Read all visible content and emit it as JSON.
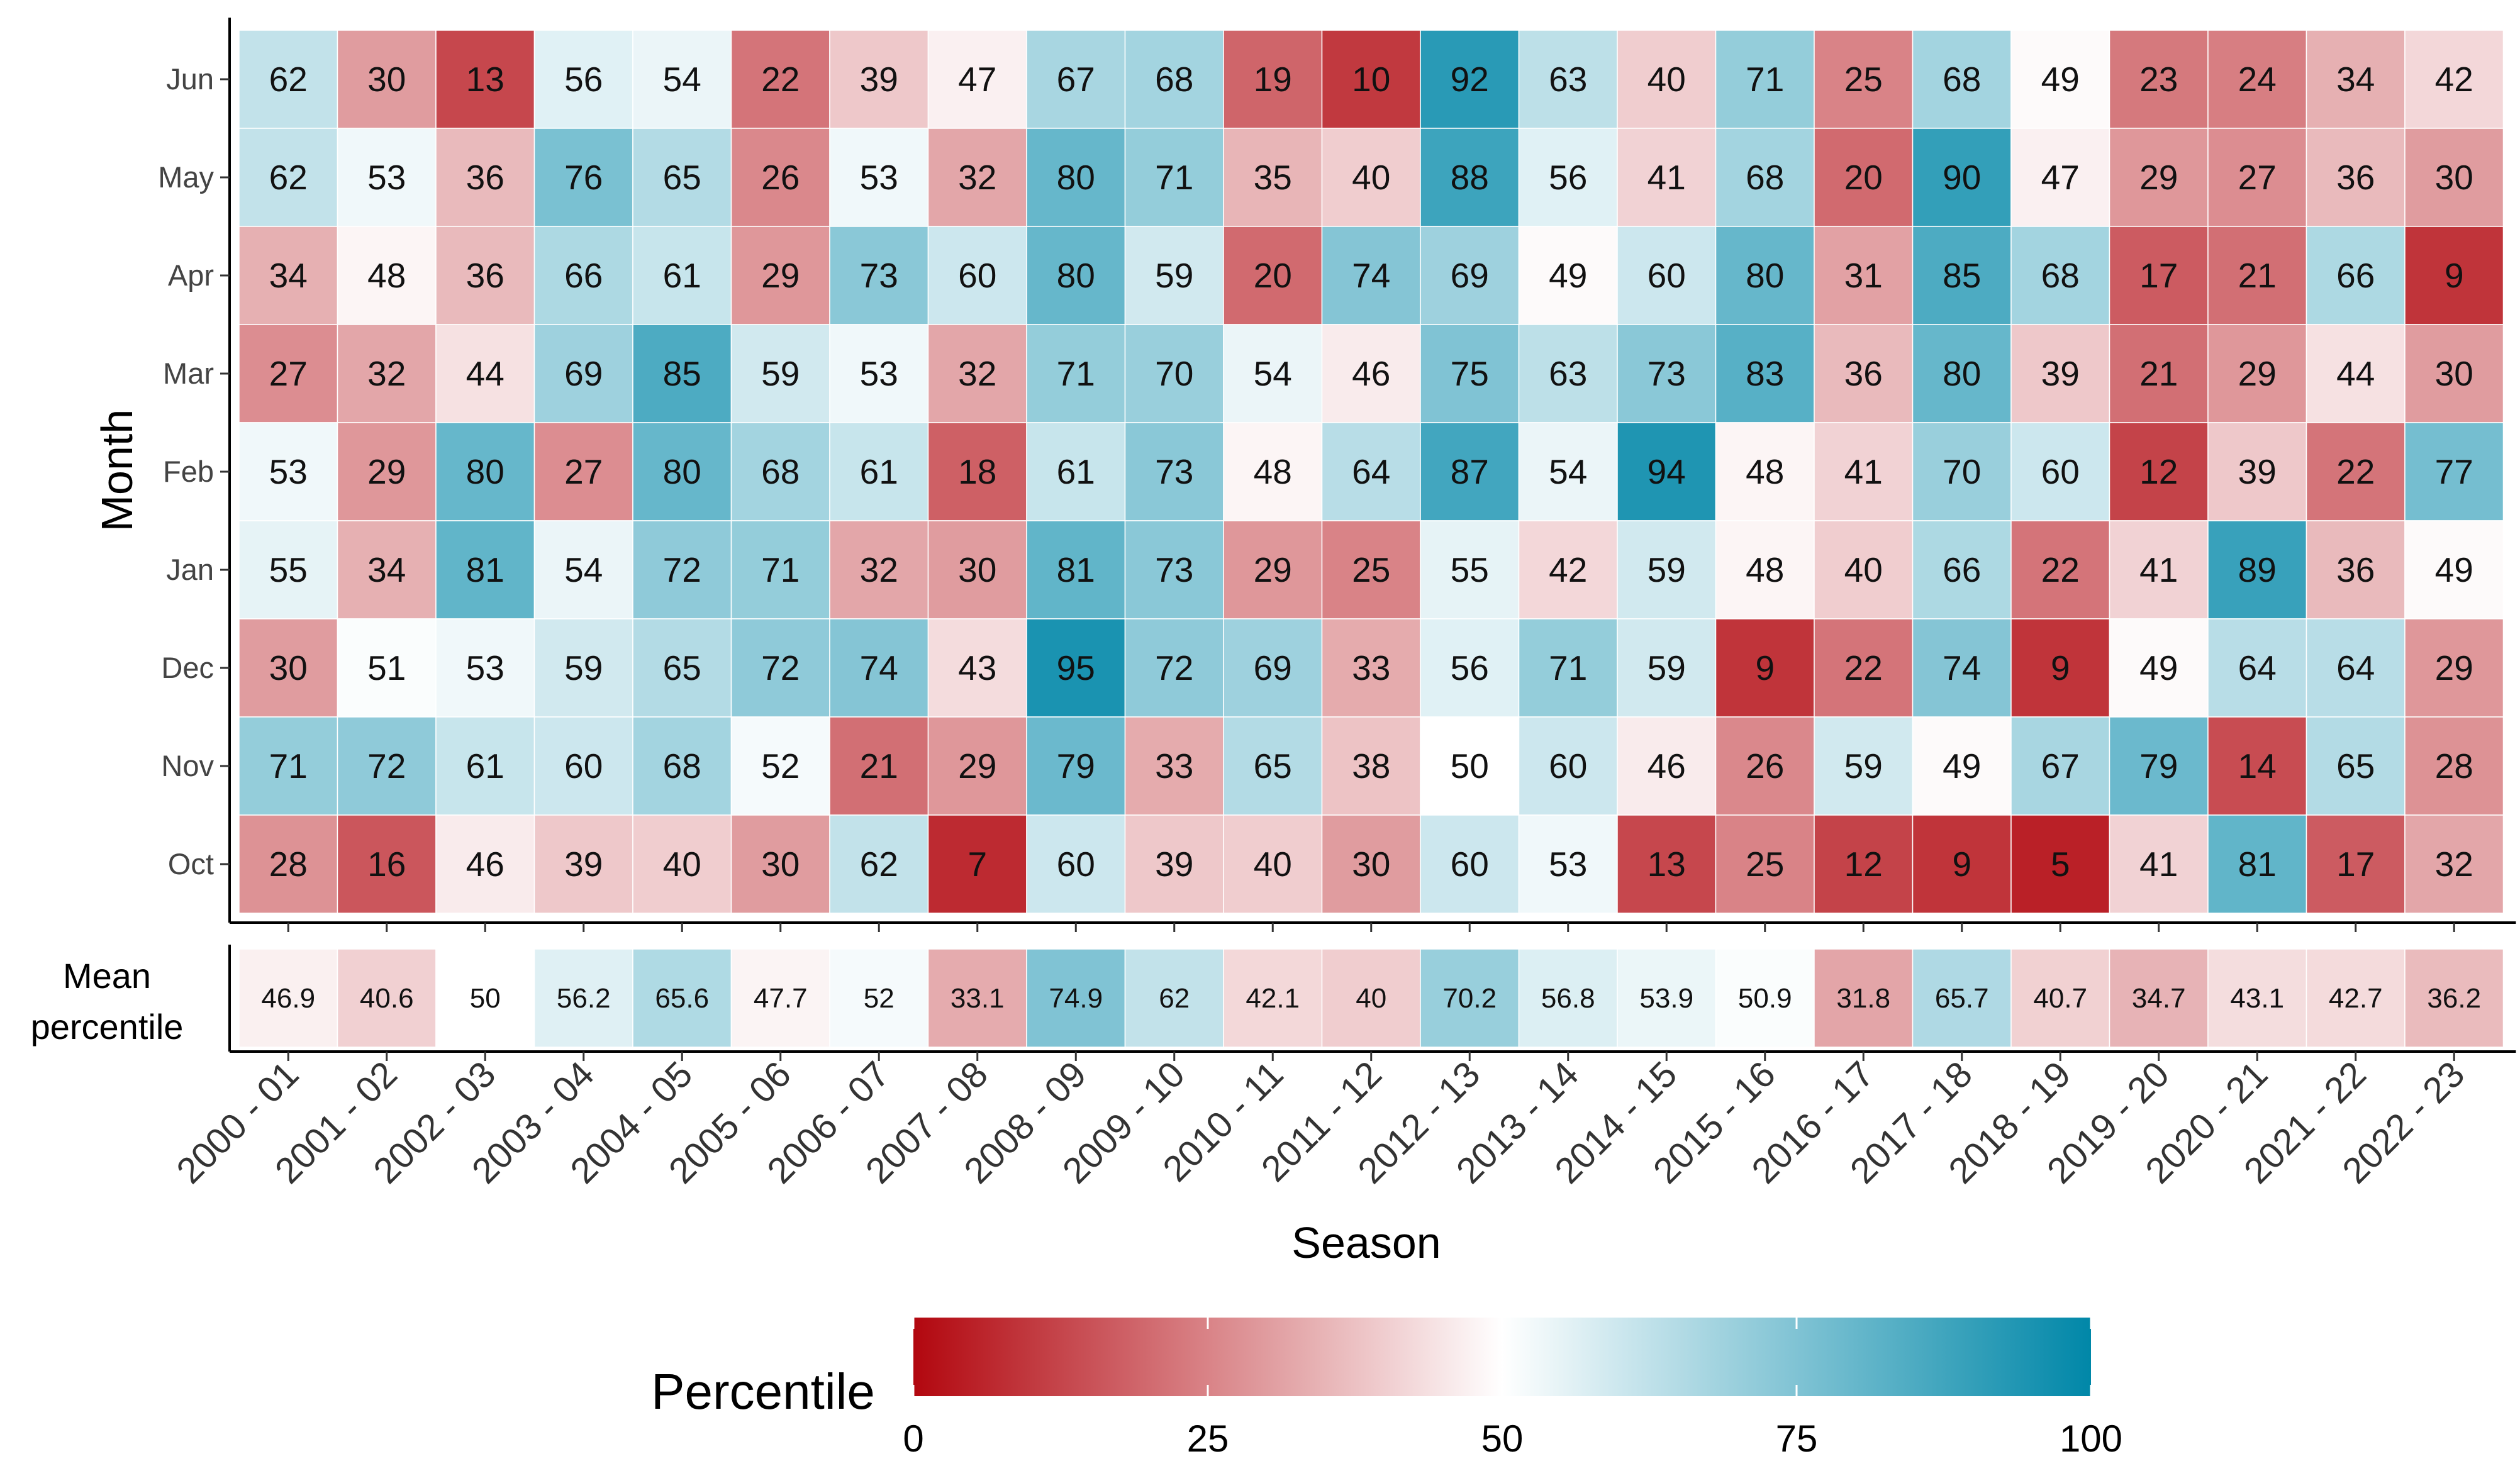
{
  "chart_data": {
    "type": "heatmap",
    "xlabel": "Season",
    "ylabel": "Month",
    "x": [
      "2000 - 01",
      "2001 - 02",
      "2002 - 03",
      "2003 - 04",
      "2004 - 05",
      "2005 - 06",
      "2006 - 07",
      "2007 - 08",
      "2008 - 09",
      "2009 - 10",
      "2010 - 11",
      "2011 - 12",
      "2012 - 13",
      "2013 - 14",
      "2014 - 15",
      "2015 - 16",
      "2016 - 17",
      "2017 - 18",
      "2018 - 19",
      "2019 - 20",
      "2020 - 21",
      "2021 - 22",
      "2022 - 23"
    ],
    "y": [
      "Jun",
      "May",
      "Apr",
      "Mar",
      "Feb",
      "Jan",
      "Dec",
      "Nov",
      "Oct"
    ],
    "values": [
      [
        62,
        30,
        13,
        56,
        54,
        22,
        39,
        47,
        67,
        68,
        19,
        10,
        92,
        63,
        40,
        71,
        25,
        68,
        49,
        23,
        24,
        34,
        42
      ],
      [
        62,
        53,
        36,
        76,
        65,
        26,
        53,
        32,
        80,
        71,
        35,
        40,
        88,
        56,
        41,
        68,
        20,
        90,
        47,
        29,
        27,
        36,
        30
      ],
      [
        34,
        48,
        36,
        66,
        61,
        29,
        73,
        60,
        80,
        59,
        20,
        74,
        69,
        49,
        60,
        80,
        31,
        85,
        68,
        17,
        21,
        66,
        9
      ],
      [
        27,
        32,
        44,
        69,
        85,
        59,
        53,
        32,
        71,
        70,
        54,
        46,
        75,
        63,
        73,
        83,
        36,
        80,
        39,
        21,
        29,
        44,
        30
      ],
      [
        53,
        29,
        80,
        27,
        80,
        68,
        61,
        18,
        61,
        73,
        48,
        64,
        87,
        54,
        94,
        48,
        41,
        70,
        60,
        12,
        39,
        22,
        77
      ],
      [
        55,
        34,
        81,
        54,
        72,
        71,
        32,
        30,
        81,
        73,
        29,
        25,
        55,
        42,
        59,
        48,
        40,
        66,
        22,
        41,
        89,
        36,
        49
      ],
      [
        30,
        51,
        53,
        59,
        65,
        72,
        74,
        43,
        95,
        72,
        69,
        33,
        56,
        71,
        59,
        9,
        22,
        74,
        9,
        49,
        64,
        64,
        29
      ],
      [
        71,
        72,
        61,
        60,
        68,
        52,
        21,
        29,
        79,
        33,
        65,
        38,
        50,
        60,
        46,
        26,
        59,
        49,
        67,
        79,
        14,
        65,
        28
      ],
      [
        28,
        16,
        46,
        39,
        40,
        30,
        62,
        7,
        60,
        39,
        40,
        30,
        60,
        53,
        13,
        25,
        12,
        9,
        5,
        41,
        81,
        17,
        32
      ]
    ],
    "mean_label_line1": "Mean",
    "mean_label_line2": "percentile",
    "mean_percentile": [
      "46.9",
      "40.6",
      "50",
      "56.2",
      "65.6",
      "47.7",
      "52",
      "33.1",
      "74.9",
      "62",
      "42.1",
      "40",
      "70.2",
      "56.8",
      "53.9",
      "50.9",
      "31.8",
      "65.7",
      "40.7",
      "34.7",
      "43.1",
      "42.7",
      "36.2"
    ],
    "legend": {
      "title": "Percentile",
      "ticks": [
        "0",
        "25",
        "50",
        "75",
        "100"
      ],
      "colors": {
        "low": "#b2070f",
        "mid": "#ffffff",
        "high": "#0087a8"
      }
    }
  }
}
